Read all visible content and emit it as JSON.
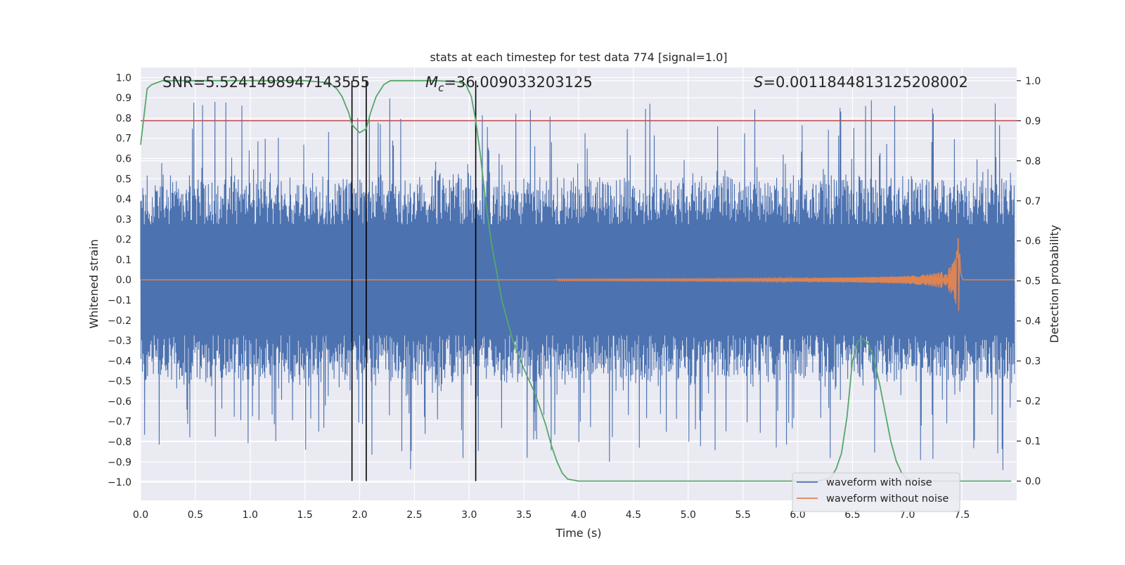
{
  "chart_data": {
    "type": "line",
    "title": "stats at each timestep for test data 774 [signal=1.0]",
    "xlabel": "Time (s)",
    "ylabel_left": "Whitened strain",
    "ylabel_right": "Detection probability",
    "xlim": [
      0.0,
      8.0
    ],
    "ylim_left": [
      -1.09,
      1.05
    ],
    "ylim_right": [
      -0.048,
      1.033
    ],
    "x_ticks": [
      "0.0",
      "0.5",
      "1.0",
      "1.5",
      "2.0",
      "2.5",
      "3.0",
      "3.5",
      "4.0",
      "4.5",
      "5.0",
      "5.5",
      "6.0",
      "6.5",
      "7.0",
      "7.5"
    ],
    "y_left_ticks": [
      "1.0",
      "0.9",
      "0.8",
      "0.7",
      "0.6",
      "0.5",
      "0.4",
      "0.3",
      "0.2",
      "0.1",
      "0.0",
      "−0.1",
      "−0.2",
      "−0.3",
      "−0.4",
      "−0.5",
      "−0.6",
      "−0.7",
      "−0.8",
      "−0.9",
      "−1.0"
    ],
    "y_right_ticks": [
      "1.0",
      "0.9",
      "0.8",
      "0.7",
      "0.6",
      "0.5",
      "0.4",
      "0.3",
      "0.2",
      "0.1",
      "0.0"
    ],
    "grid": true,
    "legend_position": "bottom-right",
    "annotations": {
      "snr": "SNR=5.5241498947143555",
      "mc_symbol": "M",
      "mc_sub": "c",
      "mc_value": "=36.009033203125",
      "s_symbol": "S",
      "s_value": "=0.0011844813125208002"
    },
    "threshold_line": {
      "y_right": 0.9,
      "color": "#c44e52"
    },
    "vertical_markers_s": [
      1.93,
      2.06,
      3.06
    ],
    "series": [
      {
        "name": "waveform with noise",
        "color": "#4c72b0",
        "axis": "left",
        "amplitude_envelope": 0.5,
        "peak_range": [
          -0.94,
          0.93
        ]
      },
      {
        "name": "waveform without noise",
        "color": "#dd8452",
        "axis": "left",
        "description_points": {
          "chirp_start_s": 3.8,
          "merger_s": 7.48,
          "merger_amplitude": 0.32
        }
      },
      {
        "name": "detection probability",
        "color": "#55a868",
        "axis": "right",
        "x": [
          0.0,
          0.06,
          0.1,
          0.2,
          0.5,
          1.0,
          1.5,
          1.72,
          1.79,
          1.84,
          1.9,
          1.93,
          2.0,
          2.06,
          2.1,
          2.15,
          2.22,
          2.28,
          2.4,
          2.7,
          2.9,
          2.97,
          3.02,
          3.06,
          3.1,
          3.15,
          3.2,
          3.3,
          3.4,
          3.5,
          3.6,
          3.7,
          3.75,
          3.8,
          3.85,
          3.9,
          4.0,
          5.0,
          6.0,
          6.2,
          6.3,
          6.35,
          6.4,
          6.45,
          6.5,
          6.55,
          6.6,
          6.65,
          6.7,
          6.75,
          6.8,
          6.85,
          6.9,
          6.95,
          7.0,
          7.1,
          7.3,
          7.5,
          7.8,
          7.95
        ],
        "y": [
          0.84,
          0.98,
          0.99,
          1.0,
          1.0,
          1.0,
          1.0,
          0.995,
          0.98,
          0.96,
          0.92,
          0.89,
          0.87,
          0.88,
          0.92,
          0.96,
          0.99,
          1.0,
          1.0,
          1.0,
          0.997,
          0.99,
          0.96,
          0.9,
          0.82,
          0.7,
          0.6,
          0.45,
          0.35,
          0.28,
          0.22,
          0.14,
          0.09,
          0.05,
          0.02,
          0.005,
          0.0,
          0.0,
          0.0,
          0.0,
          0.008,
          0.03,
          0.07,
          0.16,
          0.3,
          0.35,
          0.355,
          0.34,
          0.3,
          0.24,
          0.17,
          0.1,
          0.05,
          0.02,
          0.005,
          0.0,
          0.0,
          0.0,
          0.0,
          0.0
        ]
      }
    ]
  }
}
